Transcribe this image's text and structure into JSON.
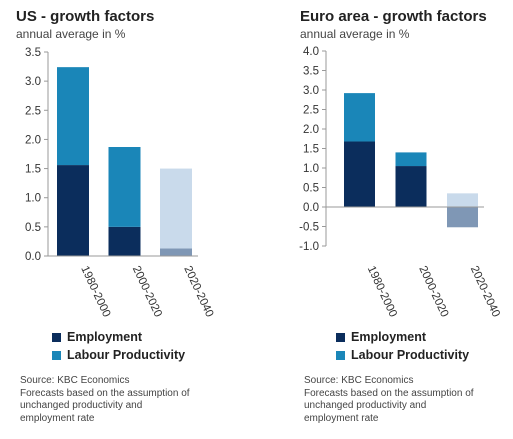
{
  "colors": {
    "employment": "#0b2d5c",
    "labour_productivity": "#1a86b8",
    "forecast_employment": "#7f97b5",
    "forecast_labour_productivity": "#c9daeb",
    "axis": "#999999"
  },
  "legend": {
    "employment": "Employment",
    "labour_productivity": "Labour Productivity"
  },
  "panels": [
    {
      "title": "US - growth factors",
      "subtitle": "annual average in %",
      "source": {
        "line1": "Source: KBC Economics",
        "line2": "Forecasts based on the assumption of",
        "line3": "unchanged productivity and",
        "line4": "employment rate"
      }
    },
    {
      "title": "Euro area - growth factors",
      "subtitle": "annual average in %",
      "source": {
        "line1": "Source: KBC Economics",
        "line2": "Forecasts based on the assumption of",
        "line3": "unchanged productivity and",
        "line4": "employment rate"
      }
    }
  ],
  "chart_data": [
    {
      "type": "bar",
      "stacked": true,
      "title": "US - growth factors",
      "subtitle": "annual average in %",
      "categories": [
        "1980-2000",
        "2000-2020",
        "2020-2040"
      ],
      "forecast_categories": [
        "2020-2040"
      ],
      "series": [
        {
          "name": "Employment",
          "values": [
            1.56,
            0.5,
            0.13
          ]
        },
        {
          "name": "Labour Productivity",
          "values": [
            1.68,
            1.37,
            1.37
          ]
        }
      ],
      "ylim": [
        0,
        3.5
      ],
      "yticks": [
        "0.0",
        "0.5",
        "1.0",
        "1.5",
        "2.0",
        "2.5",
        "3.0",
        "3.5"
      ],
      "legend_position": "bottom-left",
      "grid": false
    },
    {
      "type": "bar",
      "stacked": true,
      "title": "Euro area - growth factors",
      "subtitle": "annual average in %",
      "categories": [
        "1980-2000",
        "2000-2020",
        "2020-2040"
      ],
      "forecast_categories": [
        "2020-2040"
      ],
      "series": [
        {
          "name": "Employment",
          "values": [
            1.68,
            1.05,
            -0.52
          ]
        },
        {
          "name": "Labour Productivity",
          "values": [
            1.24,
            0.35,
            0.35
          ]
        }
      ],
      "ylim": [
        -1.0,
        4.0
      ],
      "yticks": [
        "-1.0",
        "-0.5",
        "0.0",
        "0.5",
        "1.0",
        "1.5",
        "2.0",
        "2.5",
        "3.0",
        "3.5",
        "4.0"
      ],
      "legend_position": "bottom-left",
      "grid": false
    }
  ]
}
